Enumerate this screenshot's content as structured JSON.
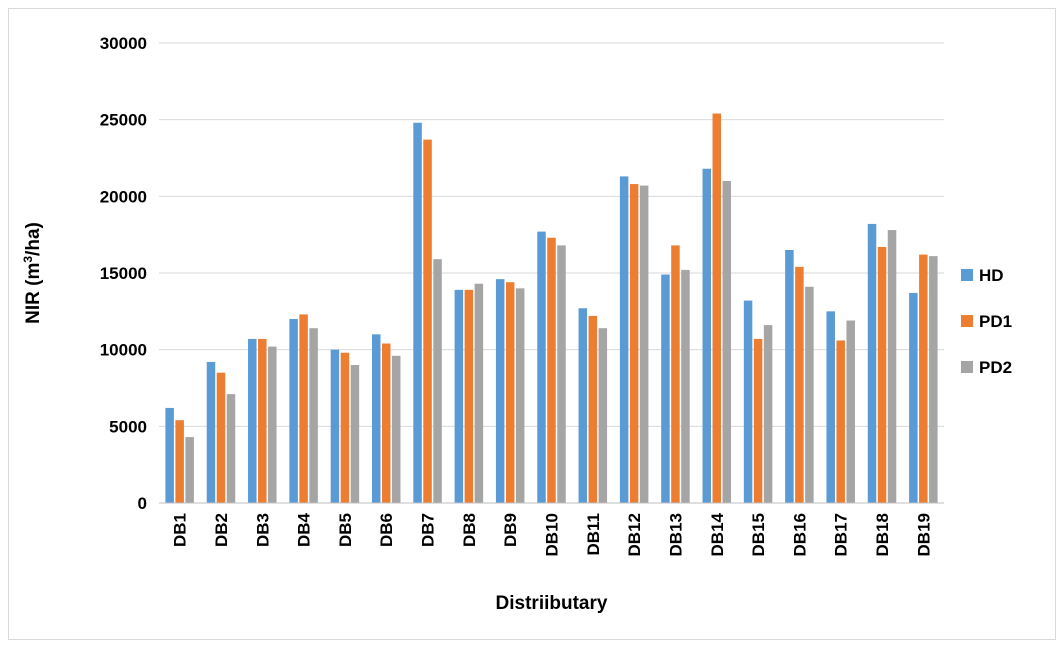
{
  "chart_data": {
    "type": "bar",
    "title": "",
    "xlabel": "Distriibutary",
    "ylabel_main": "NIR (m",
    "ylabel_sup": "3",
    "ylabel_end": "/ha)",
    "ylim": [
      0,
      30000
    ],
    "yticks": [
      0,
      5000,
      10000,
      15000,
      20000,
      25000,
      30000
    ],
    "grid": true,
    "legend_position": "right",
    "categories": [
      "DB1",
      "DB2",
      "DB3",
      "DB4",
      "DB5",
      "DB6",
      "DB7",
      "DB8",
      "DB9",
      "DB10",
      "DB11",
      "DB12",
      "DB13",
      "DB14",
      "DB15",
      "DB16",
      "DB17",
      "DB18",
      "DB19"
    ],
    "series": [
      {
        "name": "HD",
        "color": "#5B9BD5",
        "values": [
          6200,
          9200,
          10700,
          12000,
          10000,
          11000,
          24800,
          13900,
          14600,
          17700,
          12700,
          21300,
          14900,
          21800,
          13200,
          16500,
          12500,
          18200,
          13700
        ]
      },
      {
        "name": "PD1",
        "color": "#ED7D31",
        "values": [
          5400,
          8500,
          10700,
          12300,
          9800,
          10400,
          23700,
          13900,
          14400,
          17300,
          12200,
          20800,
          16800,
          25400,
          10700,
          15400,
          10600,
          16700,
          16200
        ]
      },
      {
        "name": "PD2",
        "color": "#A5A5A5",
        "values": [
          4300,
          7100,
          10200,
          11400,
          9000,
          9600,
          15900,
          14300,
          14000,
          16800,
          11400,
          20700,
          15200,
          21000,
          11600,
          14100,
          11900,
          17800,
          16100
        ]
      }
    ]
  }
}
